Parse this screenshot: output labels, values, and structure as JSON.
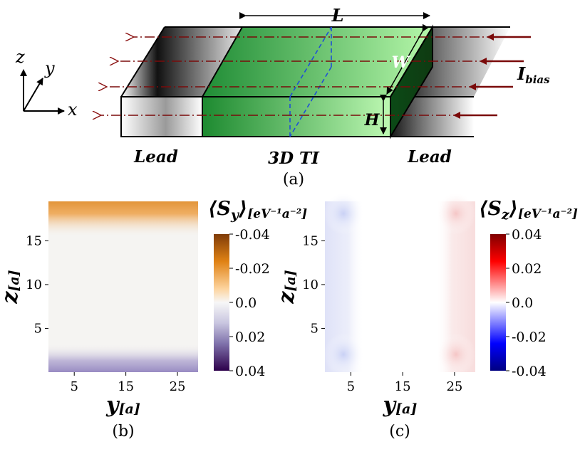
{
  "diagram": {
    "dim_L": "L",
    "dim_W": "W",
    "dim_H": "H",
    "current_label_main": "I",
    "current_label_sub": "bias",
    "lead_left": "Lead",
    "lead_right": "Lead",
    "center_label": "3D TI",
    "axis_x": "x",
    "axis_y": "y",
    "axis_z": "z",
    "caption_a": "(a)"
  },
  "colors": {
    "arrow": "#7a0a0a",
    "ti_dark": "#1a8a2e",
    "ti_light": "#b8f7b0",
    "dashed": "#1f4fd6"
  },
  "chart_data": [
    {
      "type": "heatmap",
      "caption": "(b)",
      "xlabel": "y",
      "xlabel_unit": "[a]",
      "ylabel": "z",
      "ylabel_unit": "[a]",
      "xlim": [
        0,
        29
      ],
      "ylim": [
        0,
        19.5
      ],
      "xticks": [
        "5",
        "15",
        "25"
      ],
      "xtick_values": [
        5,
        15,
        25
      ],
      "yticks": [
        "5",
        "10",
        "15"
      ],
      "ytick_values": [
        5,
        10,
        15
      ],
      "colorbar_title": "S",
      "colorbar_sub": "y",
      "colorbar_unit": "[eV⁻¹a⁻²]",
      "colorbar_ticks": [
        "-0.04",
        "-0.02",
        "0.0",
        "0.02",
        "0.04"
      ],
      "colorbar_values": [
        -0.04,
        -0.02,
        0.0,
        0.02,
        0.04
      ],
      "description_values": {
        "top_surface_z": 19,
        "top_value": -0.025,
        "bottom_surface_z": 1,
        "bottom_value": 0.025,
        "interior_value": 0.0
      }
    },
    {
      "type": "heatmap",
      "caption": "(c)",
      "xlabel": "y",
      "xlabel_unit": "[a]",
      "ylabel": "z",
      "ylabel_unit": "[a]",
      "xlim": [
        0,
        29
      ],
      "ylim": [
        0,
        19.5
      ],
      "xticks": [
        "5",
        "15",
        "25"
      ],
      "xtick_values": [
        5,
        15,
        25
      ],
      "yticks": [
        "5",
        "10",
        "15"
      ],
      "ytick_values": [
        5,
        10,
        15
      ],
      "colorbar_title": "S",
      "colorbar_sub": "z",
      "colorbar_unit": "[eV⁻¹a⁻²]",
      "colorbar_ticks": [
        "0.04",
        "0.02",
        "0.0",
        "-0.02",
        "-0.04"
      ],
      "colorbar_values": [
        0.04,
        0.02,
        0.0,
        -0.02,
        -0.04
      ],
      "description_values": {
        "left_surface_y": 3,
        "left_value": -0.01,
        "right_surface_y": 26,
        "right_value": 0.01,
        "interior_value": 0.0
      }
    }
  ]
}
